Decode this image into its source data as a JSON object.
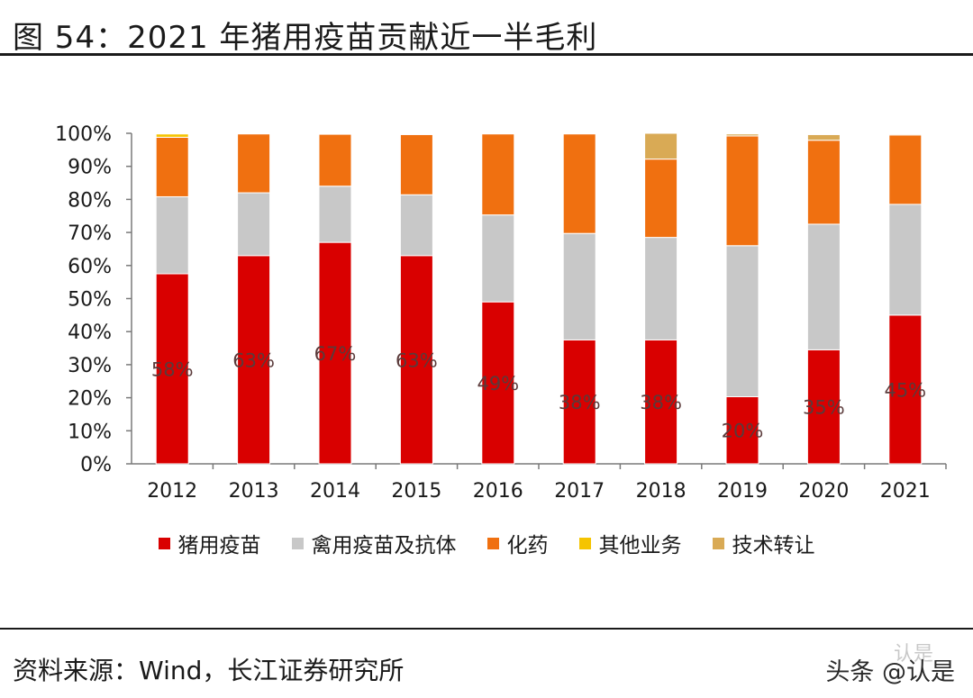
{
  "figure": {
    "title": "图 54：2021 年猪用疫苗贡献近一半毛利",
    "source": "资料来源：Wind，长江证券研究所",
    "watermark": "头条 @认是",
    "watermark_sub": "认是"
  },
  "chart_data": {
    "type": "bar",
    "stacked": true,
    "categories": [
      "2012",
      "2013",
      "2014",
      "2015",
      "2016",
      "2017",
      "2018",
      "2019",
      "2020",
      "2021"
    ],
    "ylim": [
      0,
      100
    ],
    "yticks": [
      "0%",
      "10%",
      "20%",
      "30%",
      "40%",
      "50%",
      "60%",
      "70%",
      "80%",
      "90%",
      "100%"
    ],
    "series": [
      {
        "name": "猪用疫苗",
        "color": "#d90000",
        "values": [
          57.5,
          63,
          67,
          63,
          49,
          37.5,
          37.5,
          20.3,
          34.5,
          45
        ]
      },
      {
        "name": "禽用疫苗及抗体",
        "color": "#c8c8c8",
        "values": [
          23.3,
          19,
          17,
          18.4,
          26.3,
          32.2,
          31,
          45.7,
          38,
          33.5
        ]
      },
      {
        "name": "化药",
        "color": "#f07010",
        "values": [
          18,
          17.8,
          15.7,
          18.2,
          24.5,
          30.1,
          23.7,
          33.2,
          25.4,
          21
        ]
      },
      {
        "name": "其他业务",
        "color": "#f5c400",
        "values": [
          1.0,
          0,
          0,
          0,
          0,
          0,
          0,
          0,
          0,
          0
        ]
      },
      {
        "name": "技术转让",
        "color": "#d9aa55",
        "values": [
          0,
          0,
          0,
          0,
          0,
          0,
          7.8,
          0.6,
          1.7,
          0.3
        ]
      }
    ],
    "data_labels": [
      "58%",
      "63%",
      "67%",
      "63%",
      "49%",
      "38%",
      "38%",
      "20%",
      "35%",
      "45%"
    ],
    "legend": {
      "placement": "bottom"
    },
    "grid": false
  }
}
